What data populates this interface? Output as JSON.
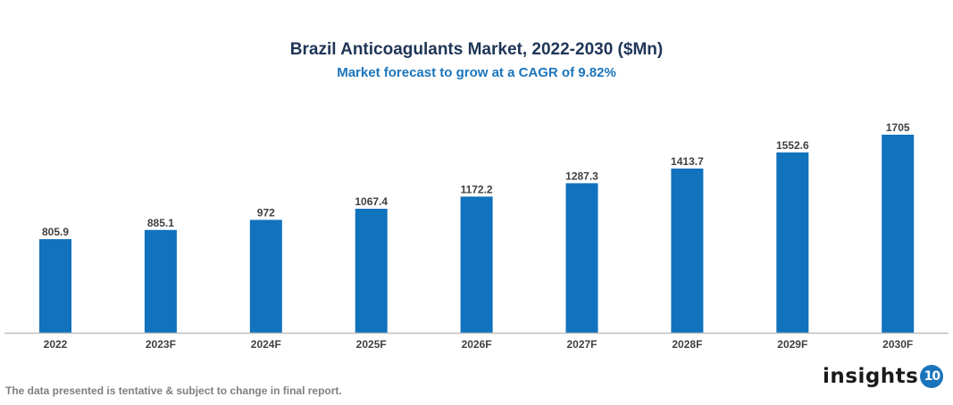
{
  "chart_data": {
    "type": "bar",
    "title": "Brazil Anticoagulants Market, 2022-2030 ($Mn)",
    "subtitle": "Market forecast to grow at a CAGR of 9.82%",
    "categories": [
      "2022",
      "2023F",
      "2024F",
      "2025F",
      "2026F",
      "2027F",
      "2028F",
      "2029F",
      "2030F"
    ],
    "values": [
      805.9,
      885.1,
      972,
      1067.4,
      1172.2,
      1287.3,
      1413.7,
      1552.6,
      1705
    ],
    "data_labels": [
      "805.9",
      "885.1",
      "972",
      "1067.4",
      "1172.2",
      "1287.3",
      "1413.7",
      "1552.6",
      "1705"
    ],
    "xlabel": "",
    "ylabel": "",
    "ylim": [
      0,
      1705
    ],
    "grid": false,
    "bar_color": "#1172bd",
    "axis_color": "#bfbfbf"
  },
  "footer": "The data presented is tentative & subject to change in final report.",
  "logo": {
    "text": "insights",
    "badge": "10"
  }
}
